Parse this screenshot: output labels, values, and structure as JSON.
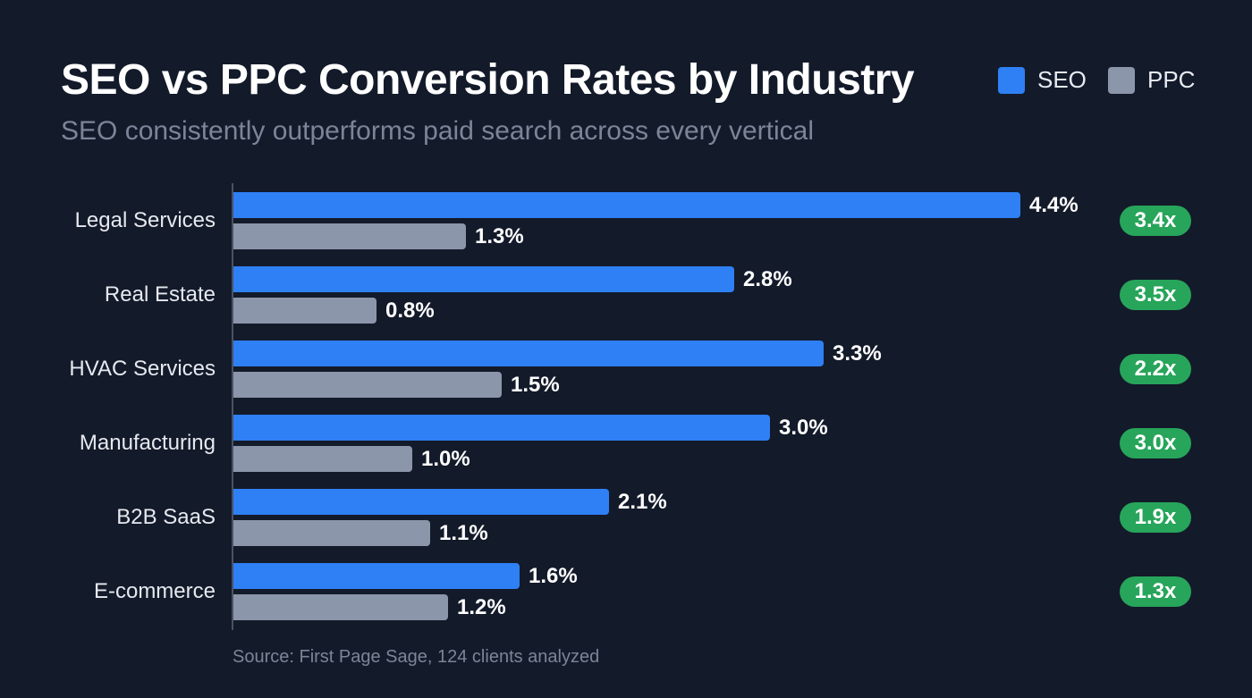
{
  "chart_data": {
    "type": "bar",
    "orientation": "horizontal",
    "title": "SEO vs PPC Conversion Rates by Industry",
    "subtitle": "SEO consistently outperforms paid search across every vertical",
    "categories": [
      "Legal Services",
      "Real Estate",
      "HVAC Services",
      "Manufacturing",
      "B2B SaaS",
      "E-commerce"
    ],
    "series": [
      {
        "name": "SEO",
        "color": "#2f80f5",
        "values": [
          4.4,
          2.8,
          3.3,
          3.0,
          2.1,
          1.6
        ],
        "labels": [
          "4.4%",
          "2.8%",
          "3.3%",
          "3.0%",
          "2.1%",
          "1.6%"
        ]
      },
      {
        "name": "PPC",
        "color": "#8c96ab",
        "values": [
          1.3,
          0.8,
          1.5,
          1.0,
          1.1,
          1.2
        ],
        "labels": [
          "1.3%",
          "0.8%",
          "1.5%",
          "1.0%",
          "1.1%",
          "1.2%"
        ]
      }
    ],
    "multipliers": [
      "3.4x",
      "3.5x",
      "2.2x",
      "3.0x",
      "1.9x",
      "1.3x"
    ],
    "badge_color": "#27a55a",
    "xlabel": "",
    "ylabel": "",
    "xlim": [
      0,
      4.4
    ],
    "legend_position": "top-right",
    "grid": false,
    "source": "Source: First Page Sage, 124 clients analyzed"
  }
}
